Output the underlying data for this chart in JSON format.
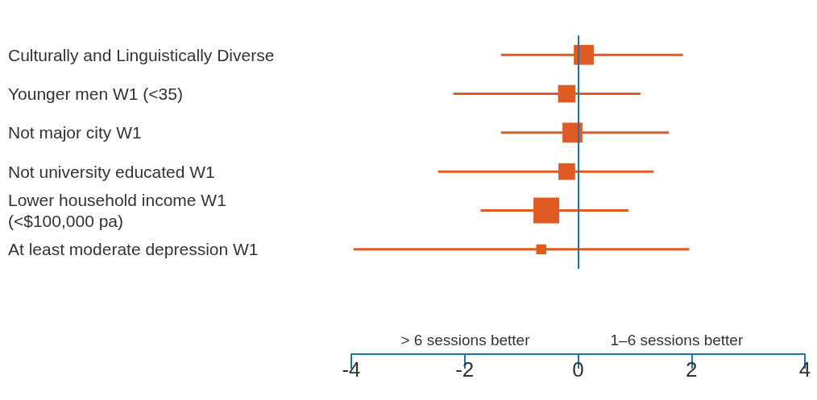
{
  "chart_data": {
    "type": "bubble",
    "orientation": "horizontal",
    "marker": "square",
    "categories": [
      "Culturally and Linguistically Diverse",
      "Younger men W1 (<35)",
      "Not major city W1",
      "Not university educated W1",
      "Lower household income W1\n(<$100,000 pa)",
      "At least moderate depression W1"
    ],
    "values": [
      0.1,
      -0.2,
      -0.1,
      -0.2,
      -0.56,
      -0.65
    ],
    "errors": [
      [
        -1.36,
        1.85
      ],
      [
        -2.2,
        1.1
      ],
      [
        -1.36,
        1.6
      ],
      [
        -2.47,
        1.33
      ],
      [
        -1.72,
        0.89
      ],
      [
        -3.96,
        1.96
      ]
    ],
    "sizes": [
      0.6,
      0.46,
      0.6,
      0.42,
      1,
      0.15
    ],
    "color": "#e05a24",
    "xlim": [
      -4,
      4
    ],
    "xticks": [
      -4,
      -2,
      0,
      2,
      4
    ],
    "ref_lines": [
      {
        "axis": "x",
        "value": 0,
        "color": "#1a78a6"
      }
    ],
    "annotations": [
      "> 6 sessions better",
      "1–6 sessions better"
    ]
  }
}
